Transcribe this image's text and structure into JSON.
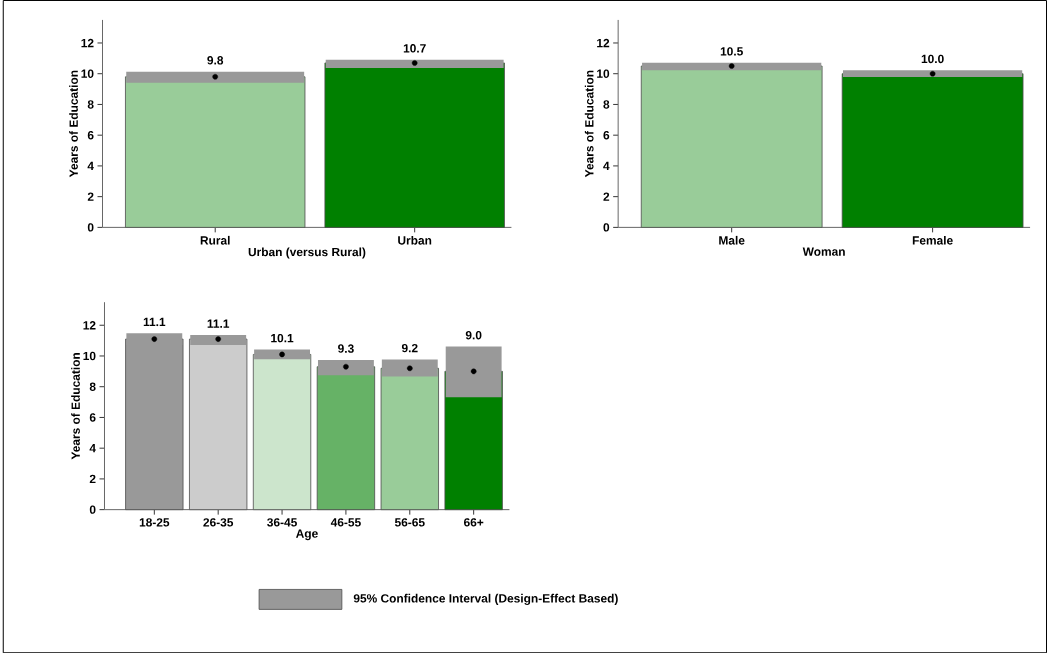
{
  "chart_data": [
    {
      "type": "bar",
      "categories": [
        "Rural",
        "Urban"
      ],
      "xlabel": "Urban (versus Rural)",
      "ylabel": "Years of Education",
      "ylim": [
        0,
        13.5
      ],
      "yticks": [
        0,
        2,
        4,
        6,
        8,
        10,
        12
      ],
      "series": [
        {
          "values": [
            9.8,
            10.7
          ],
          "colors": [
            "#99cc99",
            "#008000"
          ],
          "errors": [
            [
              9.42,
              10.13
            ],
            [
              10.37,
              10.91
            ]
          ],
          "value_labels": [
            "9.8",
            "10.7"
          ]
        },
        {
          "type": "scatter",
          "x": [
            "Rural",
            "Urban"
          ],
          "values": [
            9.8,
            10.7
          ],
          "color": "#000000",
          "marker": "circle"
        }
      ]
    },
    {
      "type": "bar",
      "categories": [
        "Male",
        "Female"
      ],
      "xlabel": "Woman",
      "ylabel": "Years of Education",
      "ylim": [
        0,
        13.5
      ],
      "yticks": [
        0,
        2,
        4,
        6,
        8,
        10,
        12
      ],
      "series": [
        {
          "values": [
            10.5,
            10.0
          ],
          "colors": [
            "#99cc99",
            "#008000"
          ],
          "errors": [
            [
              10.22,
              10.71
            ],
            [
              9.78,
              10.22
            ]
          ],
          "value_labels": [
            "10.5",
            "10.0"
          ]
        },
        {
          "type": "scatter",
          "x": [
            "Male",
            "Female"
          ],
          "values": [
            10.5,
            10.0
          ],
          "color": "#000000",
          "marker": "circle"
        }
      ]
    },
    {
      "type": "bar",
      "categories": [
        "18-25",
        "26-35",
        "36-45",
        "46-55",
        "56-65",
        "66+"
      ],
      "xlabel": "Age",
      "ylabel": "Years of Education",
      "ylim": [
        0,
        13.5
      ],
      "yticks": [
        0,
        2,
        4,
        6,
        8,
        10,
        12
      ],
      "annotations": [
        "95% Confidence Interval (Design-Effect Based)"
      ],
      "series": [
        {
          "values": [
            11.1,
            11.1,
            10.1,
            9.3,
            9.2,
            9.0
          ],
          "colors": [
            "#999999",
            "#cccccc",
            "#cce5cc",
            "#66b266",
            "#99cc99",
            "#008000"
          ],
          "errors": [
            [
              10.72,
              11.48
            ],
            [
              10.72,
              11.37
            ],
            [
              9.79,
              10.42
            ],
            [
              8.75,
              9.74
            ],
            [
              8.66,
              9.77
            ],
            [
              7.31,
              10.61
            ]
          ],
          "value_labels": [
            "11.1",
            "11.1",
            "10.1",
            "9.3",
            "9.2",
            "9.0"
          ]
        },
        {
          "type": "scatter",
          "x": [
            "18-25",
            "26-35",
            "36-45",
            "46-55",
            "56-65",
            "66+"
          ],
          "values": [
            11.1,
            11.1,
            10.1,
            9.3,
            9.2,
            9.0
          ],
          "color": "#000000",
          "marker": "circle"
        }
      ]
    }
  ]
}
